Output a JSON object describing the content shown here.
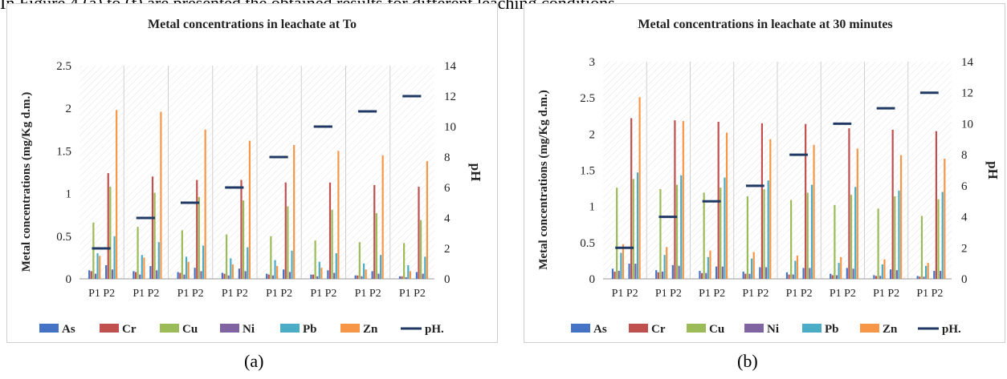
{
  "intro_text": "In Figure 4 (a) to (f) are presented the obtained results for different leaching conditions.",
  "panel_labels": [
    "(a)",
    "(b)"
  ],
  "colors": {
    "As": "#4472c4",
    "Cr": "#c0504d",
    "Cu": "#9bbb59",
    "Ni": "#8064a2",
    "Pb": "#4bacc6",
    "Zn": "#f79646",
    "pH": "#1f3864"
  },
  "chart_data": [
    {
      "type": "bar",
      "title": "Metal concentrations  in leachate at To",
      "ylabel": "Metal concentrations  (mg/Kg d.m.)",
      "y2label": "pH",
      "ylim": [
        0,
        2.5
      ],
      "yticks": [
        "0",
        "0.5",
        "1",
        "1.5",
        "2",
        "2.5"
      ],
      "y2lim": [
        0,
        14
      ],
      "y2ticks": [
        "0",
        "2",
        "4",
        "6",
        "8",
        "10",
        "12",
        "14"
      ],
      "groups": 8,
      "tick_labels": [
        "P1 P2",
        "P1 P2",
        "P1 P2",
        "P1 P2",
        "P1 P2",
        "P1 P2",
        "P1 P2",
        "P1 P2"
      ],
      "legend_position": "bottom",
      "legend": [
        "As",
        "Cr",
        "Cu",
        "Ni",
        "Pb",
        "Zn",
        "pH."
      ],
      "series": [
        {
          "name": "As",
          "P1": [
            0.1,
            0.09,
            0.08,
            0.07,
            0.06,
            0.05,
            0.04,
            0.03
          ],
          "P2": [
            0.16,
            0.15,
            0.13,
            0.12,
            0.11,
            0.1,
            0.09,
            0.08
          ]
        },
        {
          "name": "Cr",
          "P1": [
            0.09,
            0.08,
            0.07,
            0.06,
            0.05,
            0.05,
            0.04,
            0.03
          ],
          "P2": [
            1.24,
            1.2,
            1.16,
            1.16,
            1.13,
            1.13,
            1.1,
            1.08
          ]
        },
        {
          "name": "Cu",
          "P1": [
            0.66,
            0.61,
            0.57,
            0.52,
            0.5,
            0.45,
            0.43,
            0.42
          ],
          "P2": [
            1.08,
            1.01,
            0.96,
            0.92,
            0.85,
            0.81,
            0.77,
            0.69
          ]
        },
        {
          "name": "Ni",
          "P1": [
            0.06,
            0.05,
            0.05,
            0.04,
            0.04,
            0.03,
            0.03,
            0.02
          ],
          "P2": [
            0.11,
            0.1,
            0.09,
            0.09,
            0.08,
            0.07,
            0.06,
            0.06
          ]
        },
        {
          "name": "Pb",
          "P1": [
            0.3,
            0.28,
            0.26,
            0.24,
            0.22,
            0.2,
            0.18,
            0.16
          ],
          "P2": [
            0.5,
            0.43,
            0.39,
            0.37,
            0.33,
            0.3,
            0.28,
            0.26
          ]
        },
        {
          "name": "Zn",
          "P1": [
            0.27,
            0.25,
            0.2,
            0.17,
            0.15,
            0.13,
            0.11,
            0.09
          ],
          "P2": [
            1.98,
            1.96,
            1.75,
            1.62,
            1.57,
            1.5,
            1.45,
            1.38
          ]
        }
      ],
      "pH": [
        2,
        4,
        5,
        6,
        8,
        10,
        11,
        12
      ]
    },
    {
      "type": "bar",
      "title": "Metal concentrations  in leachate at 30 minutes",
      "ylabel": "Metal concentrations  (mg/Kg d.m.)",
      "y2label": "pH",
      "ylim": [
        0,
        3
      ],
      "yticks": [
        "0",
        "0.5",
        "1",
        "1.5",
        "2",
        "2.5",
        "3"
      ],
      "y2lim": [
        0,
        14
      ],
      "y2ticks": [
        "0",
        "2",
        "4",
        "6",
        "8",
        "10",
        "12",
        "14"
      ],
      "groups": 8,
      "tick_labels": [
        "P1 P2",
        "P1 P2",
        "P1 P2",
        "P1 P2",
        "P1 P2",
        "P1 P2",
        "P1 P2",
        "P1 P2"
      ],
      "legend_position": "bottom",
      "legend": [
        "As",
        "Cr",
        "Cu",
        "Ni",
        "Pb",
        "Zn",
        "pH."
      ],
      "series": [
        {
          "name": "As",
          "P1": [
            0.14,
            0.12,
            0.11,
            0.1,
            0.09,
            0.07,
            0.05,
            0.04
          ],
          "P2": [
            0.21,
            0.19,
            0.17,
            0.16,
            0.15,
            0.15,
            0.13,
            0.11
          ]
        },
        {
          "name": "Cr",
          "P1": [
            0.1,
            0.09,
            0.08,
            0.07,
            0.06,
            0.05,
            0.04,
            0.03
          ],
          "P2": [
            2.22,
            2.19,
            2.17,
            2.15,
            2.14,
            2.08,
            2.06,
            2.04
          ]
        },
        {
          "name": "Cu",
          "P1": [
            1.26,
            1.24,
            1.19,
            1.14,
            1.09,
            1.02,
            0.97,
            0.87
          ],
          "P2": [
            1.38,
            1.3,
            1.26,
            1.24,
            1.19,
            1.16,
            1.14,
            1.1
          ]
        },
        {
          "name": "Ni",
          "P1": [
            0.11,
            0.1,
            0.08,
            0.07,
            0.06,
            0.05,
            0.04,
            0.03
          ],
          "P2": [
            0.21,
            0.18,
            0.17,
            0.16,
            0.15,
            0.14,
            0.12,
            0.11
          ]
        },
        {
          "name": "Pb",
          "P1": [
            0.36,
            0.33,
            0.3,
            0.28,
            0.25,
            0.22,
            0.2,
            0.18
          ],
          "P2": [
            1.47,
            1.43,
            1.4,
            1.36,
            1.3,
            1.27,
            1.22,
            1.2
          ]
        },
        {
          "name": "Zn",
          "P1": [
            0.48,
            0.44,
            0.39,
            0.37,
            0.32,
            0.3,
            0.27,
            0.22
          ],
          "P2": [
            2.51,
            2.18,
            2.02,
            1.93,
            1.85,
            1.8,
            1.71,
            1.66
          ]
        }
      ],
      "pH": [
        2,
        4,
        5,
        6,
        8,
        10,
        11,
        12
      ]
    }
  ]
}
